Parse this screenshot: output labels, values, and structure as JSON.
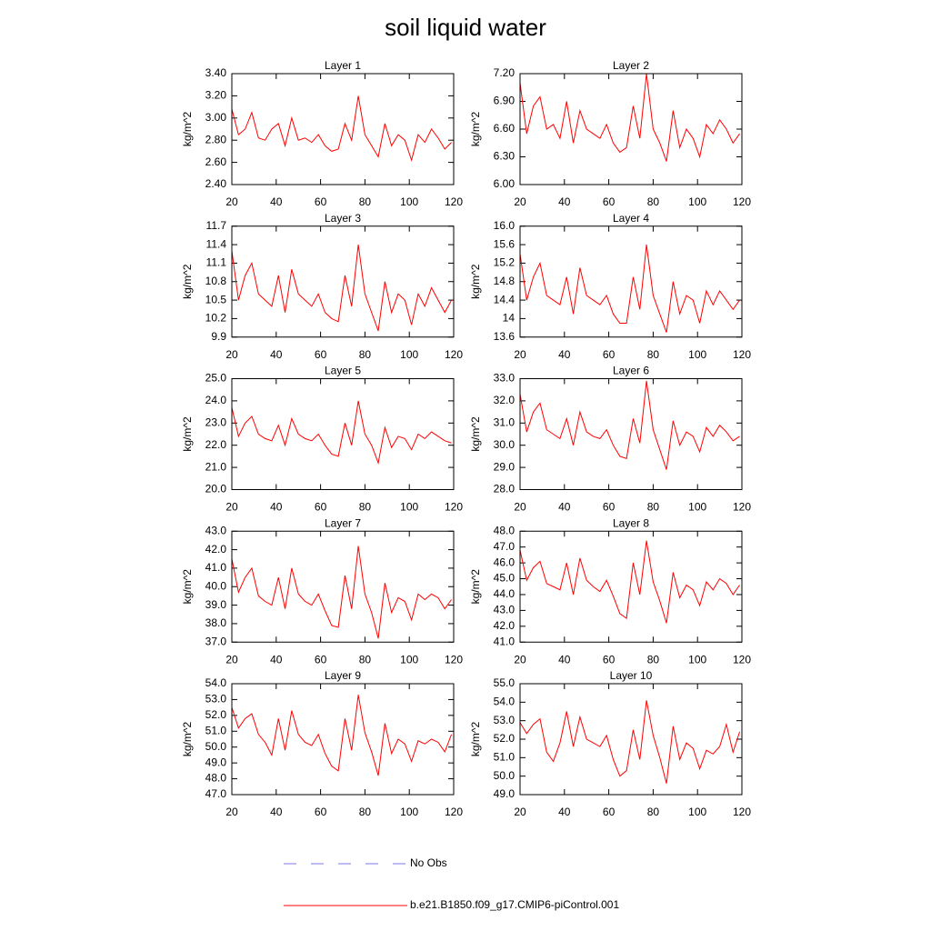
{
  "title": "soil liquid water",
  "legend": [
    {
      "name": "No Obs",
      "color": "#7b7be8",
      "dash": true
    },
    {
      "name": "b.e21.B1850.f09_g17.CMIP6-piControl.001",
      "color": "#ff0000",
      "dash": false
    }
  ],
  "chart_data": [
    {
      "type": "line",
      "title": "Layer 1",
      "y_label": "kg/m^2",
      "x": [
        20,
        23,
        26,
        29,
        32,
        35,
        38,
        41,
        44,
        47,
        50,
        53,
        56,
        59,
        62,
        65,
        68,
        71,
        74,
        77,
        80,
        83,
        86,
        89,
        92,
        95,
        98,
        101,
        104,
        107,
        110,
        113,
        116,
        119
      ],
      "xlim": [
        20,
        120
      ],
      "xticks": [
        20,
        40,
        60,
        80,
        100,
        120
      ],
      "ylim": [
        2.4,
        3.4
      ],
      "yticks": [
        {
          "value": 2.4,
          "label": "2.40"
        },
        {
          "value": 2.6,
          "label": "2.60"
        },
        {
          "value": 2.8,
          "label": "2.80"
        },
        {
          "value": 3.0,
          "label": "3.00"
        },
        {
          "value": 3.2,
          "label": "3.20"
        },
        {
          "value": 3.4,
          "label": "3.40"
        }
      ],
      "series": [
        {
          "color": "#ff0000",
          "values": [
            3.08,
            2.85,
            2.9,
            3.05,
            2.82,
            2.8,
            2.9,
            2.95,
            2.75,
            3.0,
            2.8,
            2.82,
            2.78,
            2.85,
            2.75,
            2.7,
            2.72,
            2.95,
            2.8,
            3.2,
            2.85,
            2.75,
            2.65,
            2.95,
            2.75,
            2.85,
            2.8,
            2.62,
            2.85,
            2.78,
            2.9,
            2.82,
            2.72,
            2.78
          ]
        }
      ]
    },
    {
      "type": "line",
      "title": "Layer 2",
      "y_label": "kg/m^2",
      "x": [
        20,
        23,
        26,
        29,
        32,
        35,
        38,
        41,
        44,
        47,
        50,
        53,
        56,
        59,
        62,
        65,
        68,
        71,
        74,
        77,
        80,
        83,
        86,
        89,
        92,
        95,
        98,
        101,
        104,
        107,
        110,
        113,
        116,
        119
      ],
      "xlim": [
        20,
        120
      ],
      "xticks": [
        20,
        40,
        60,
        80,
        100,
        120
      ],
      "ylim": [
        6.0,
        7.2
      ],
      "yticks": [
        {
          "value": 6.0,
          "label": "6.00"
        },
        {
          "value": 6.3,
          "label": "6.30"
        },
        {
          "value": 6.6,
          "label": "6.60"
        },
        {
          "value": 6.9,
          "label": "6.90"
        },
        {
          "value": 7.2,
          "label": "7.20"
        }
      ],
      "series": [
        {
          "color": "#ff0000",
          "values": [
            7.1,
            6.55,
            6.85,
            6.95,
            6.6,
            6.65,
            6.5,
            6.9,
            6.45,
            6.8,
            6.6,
            6.55,
            6.5,
            6.65,
            6.45,
            6.35,
            6.4,
            6.85,
            6.5,
            7.2,
            6.6,
            6.45,
            6.25,
            6.8,
            6.4,
            6.6,
            6.5,
            6.3,
            6.65,
            6.55,
            6.7,
            6.6,
            6.45,
            6.55
          ]
        }
      ]
    },
    {
      "type": "line",
      "title": "Layer 3",
      "y_label": "kg/m^2",
      "x": [
        20,
        23,
        26,
        29,
        32,
        35,
        38,
        41,
        44,
        47,
        50,
        53,
        56,
        59,
        62,
        65,
        68,
        71,
        74,
        77,
        80,
        83,
        86,
        89,
        92,
        95,
        98,
        101,
        104,
        107,
        110,
        113,
        116,
        119
      ],
      "xlim": [
        20,
        120
      ],
      "xticks": [
        20,
        40,
        60,
        80,
        100,
        120
      ],
      "ylim": [
        9.9,
        11.7
      ],
      "yticks": [
        9.9,
        10.2,
        10.5,
        10.8,
        11.1,
        11.4,
        11.7
      ],
      "series": [
        {
          "color": "#ff0000",
          "values": [
            11.3,
            10.5,
            10.9,
            11.1,
            10.6,
            10.5,
            10.4,
            10.9,
            10.3,
            11.0,
            10.6,
            10.5,
            10.4,
            10.6,
            10.3,
            10.2,
            10.15,
            10.9,
            10.4,
            11.4,
            10.6,
            10.3,
            10.0,
            10.8,
            10.3,
            10.6,
            10.5,
            10.1,
            10.6,
            10.4,
            10.7,
            10.5,
            10.3,
            10.5
          ]
        }
      ]
    },
    {
      "type": "line",
      "title": "Layer 4",
      "y_label": "kg/m^2",
      "x": [
        20,
        23,
        26,
        29,
        32,
        35,
        38,
        41,
        44,
        47,
        50,
        53,
        56,
        59,
        62,
        65,
        68,
        71,
        74,
        77,
        80,
        83,
        86,
        89,
        92,
        95,
        98,
        101,
        104,
        107,
        110,
        113,
        116,
        119
      ],
      "xlim": [
        20,
        120
      ],
      "xticks": [
        20,
        40,
        60,
        80,
        100,
        120
      ],
      "ylim": [
        13.6,
        16.0
      ],
      "yticks": [
        13.6,
        14.0,
        14.4,
        14.8,
        15.2,
        15.6,
        {
          "value": 16.0,
          "label": "16.0"
        }
      ],
      "series": [
        {
          "color": "#ff0000",
          "values": [
            15.4,
            14.4,
            14.9,
            15.2,
            14.5,
            14.4,
            14.3,
            14.9,
            14.1,
            15.1,
            14.5,
            14.4,
            14.3,
            14.5,
            14.1,
            13.9,
            13.9,
            14.9,
            14.2,
            15.6,
            14.5,
            14.1,
            13.7,
            14.8,
            14.1,
            14.5,
            14.4,
            13.9,
            14.6,
            14.3,
            14.6,
            14.4,
            14.2,
            14.4
          ]
        }
      ]
    },
    {
      "type": "line",
      "title": "Layer 5",
      "y_label": "kg/m^2",
      "x": [
        20,
        23,
        26,
        29,
        32,
        35,
        38,
        41,
        44,
        47,
        50,
        53,
        56,
        59,
        62,
        65,
        68,
        71,
        74,
        77,
        80,
        83,
        86,
        89,
        92,
        95,
        98,
        101,
        104,
        107,
        110,
        113,
        116,
        119
      ],
      "xlim": [
        20,
        120
      ],
      "xticks": [
        20,
        40,
        60,
        80,
        100,
        120
      ],
      "ylim": [
        20.0,
        25.0
      ],
      "yticks": [
        {
          "value": 20,
          "label": "20.0"
        },
        {
          "value": 21,
          "label": "21.0"
        },
        {
          "value": 22,
          "label": "22.0"
        },
        {
          "value": 23,
          "label": "23.0"
        },
        {
          "value": 24,
          "label": "24.0"
        },
        {
          "value": 25,
          "label": "25.0"
        }
      ],
      "series": [
        {
          "color": "#ff0000",
          "values": [
            23.7,
            22.4,
            23.0,
            23.3,
            22.5,
            22.3,
            22.2,
            22.9,
            22.0,
            23.2,
            22.5,
            22.3,
            22.2,
            22.5,
            22.0,
            21.6,
            21.5,
            23.0,
            22.0,
            24.0,
            22.5,
            22.0,
            21.2,
            22.8,
            21.9,
            22.4,
            22.3,
            21.8,
            22.5,
            22.3,
            22.6,
            22.4,
            22.2,
            22.1
          ]
        }
      ]
    },
    {
      "type": "line",
      "title": "Layer 6",
      "y_label": "kg/m^2",
      "x": [
        20,
        23,
        26,
        29,
        32,
        35,
        38,
        41,
        44,
        47,
        50,
        53,
        56,
        59,
        62,
        65,
        68,
        71,
        74,
        77,
        80,
        83,
        86,
        89,
        92,
        95,
        98,
        101,
        104,
        107,
        110,
        113,
        116,
        119
      ],
      "xlim": [
        20,
        120
      ],
      "xticks": [
        20,
        40,
        60,
        80,
        100,
        120
      ],
      "ylim": [
        28.0,
        33.0
      ],
      "yticks": [
        {
          "value": 28,
          "label": "28.0"
        },
        {
          "value": 29,
          "label": "29.0"
        },
        {
          "value": 30,
          "label": "30.0"
        },
        {
          "value": 31,
          "label": "31.0"
        },
        {
          "value": 32,
          "label": "32.0"
        },
        {
          "value": 33,
          "label": "33.0"
        }
      ],
      "series": [
        {
          "color": "#ff0000",
          "values": [
            32.3,
            30.6,
            31.5,
            31.9,
            30.7,
            30.5,
            30.3,
            31.2,
            30.0,
            31.5,
            30.6,
            30.4,
            30.3,
            30.7,
            30.0,
            29.5,
            29.4,
            31.2,
            30.1,
            32.9,
            30.7,
            29.8,
            28.9,
            31.1,
            30.0,
            30.6,
            30.4,
            29.7,
            30.8,
            30.4,
            30.9,
            30.6,
            30.2,
            30.4
          ]
        }
      ]
    },
    {
      "type": "line",
      "title": "Layer 7",
      "y_label": "kg/m^2",
      "x": [
        20,
        23,
        26,
        29,
        32,
        35,
        38,
        41,
        44,
        47,
        50,
        53,
        56,
        59,
        62,
        65,
        68,
        71,
        74,
        77,
        80,
        83,
        86,
        89,
        92,
        95,
        98,
        101,
        104,
        107,
        110,
        113,
        116,
        119
      ],
      "xlim": [
        20,
        120
      ],
      "xticks": [
        20,
        40,
        60,
        80,
        100,
        120
      ],
      "ylim": [
        37.0,
        43.0
      ],
      "yticks": [
        {
          "value": 37,
          "label": "37.0"
        },
        {
          "value": 38,
          "label": "38.0"
        },
        {
          "value": 39,
          "label": "39.0"
        },
        {
          "value": 40,
          "label": "40.0"
        },
        {
          "value": 41,
          "label": "41.0"
        },
        {
          "value": 42,
          "label": "42.0"
        },
        {
          "value": 43,
          "label": "43.0"
        }
      ],
      "series": [
        {
          "color": "#ff0000",
          "values": [
            41.5,
            39.7,
            40.5,
            41.0,
            39.5,
            39.2,
            39.0,
            40.5,
            38.8,
            41.0,
            39.6,
            39.2,
            39.0,
            39.6,
            38.7,
            37.9,
            37.8,
            40.6,
            38.8,
            42.2,
            39.6,
            38.6,
            37.2,
            40.2,
            38.6,
            39.4,
            39.2,
            38.2,
            39.6,
            39.3,
            39.6,
            39.4,
            38.8,
            39.3
          ]
        }
      ]
    },
    {
      "type": "line",
      "title": "Layer 8",
      "y_label": "kg/m^2",
      "x": [
        20,
        23,
        26,
        29,
        32,
        35,
        38,
        41,
        44,
        47,
        50,
        53,
        56,
        59,
        62,
        65,
        68,
        71,
        74,
        77,
        80,
        83,
        86,
        89,
        92,
        95,
        98,
        101,
        104,
        107,
        110,
        113,
        116,
        119
      ],
      "xlim": [
        20,
        120
      ],
      "xticks": [
        20,
        40,
        60,
        80,
        100,
        120
      ],
      "ylim": [
        41.0,
        48.0
      ],
      "yticks": [
        {
          "value": 41,
          "label": "41.0"
        },
        {
          "value": 42,
          "label": "42.0"
        },
        {
          "value": 43,
          "label": "43.0"
        },
        {
          "value": 44,
          "label": "44.0"
        },
        {
          "value": 45,
          "label": "45.0"
        },
        {
          "value": 46,
          "label": "46.0"
        },
        {
          "value": 47,
          "label": "47.0"
        },
        {
          "value": 48,
          "label": "48.0"
        }
      ],
      "series": [
        {
          "color": "#ff0000",
          "values": [
            46.8,
            44.9,
            45.7,
            46.1,
            44.7,
            44.5,
            44.3,
            46.0,
            44.0,
            46.3,
            44.9,
            44.5,
            44.2,
            44.9,
            43.9,
            42.8,
            42.5,
            46.0,
            44.0,
            47.4,
            44.8,
            43.6,
            42.2,
            45.4,
            43.8,
            44.6,
            44.3,
            43.3,
            44.8,
            44.3,
            45.0,
            44.7,
            44.0,
            44.6
          ]
        }
      ]
    },
    {
      "type": "line",
      "title": "Layer 9",
      "y_label": "kg/m^2",
      "x": [
        20,
        23,
        26,
        29,
        32,
        35,
        38,
        41,
        44,
        47,
        50,
        53,
        56,
        59,
        62,
        65,
        68,
        71,
        74,
        77,
        80,
        83,
        86,
        89,
        92,
        95,
        98,
        101,
        104,
        107,
        110,
        113,
        116,
        119
      ],
      "xlim": [
        20,
        120
      ],
      "xticks": [
        20,
        40,
        60,
        80,
        100,
        120
      ],
      "ylim": [
        47.0,
        54.0
      ],
      "yticks": [
        {
          "value": 47,
          "label": "47.0"
        },
        {
          "value": 48,
          "label": "48.0"
        },
        {
          "value": 49,
          "label": "49.0"
        },
        {
          "value": 50,
          "label": "50.0"
        },
        {
          "value": 51,
          "label": "51.0"
        },
        {
          "value": 52,
          "label": "52.0"
        },
        {
          "value": 53,
          "label": "53.0"
        },
        {
          "value": 54,
          "label": "54.0"
        }
      ],
      "series": [
        {
          "color": "#ff0000",
          "values": [
            52.5,
            51.2,
            51.8,
            52.1,
            50.8,
            50.3,
            49.5,
            51.8,
            49.8,
            52.3,
            50.8,
            50.3,
            50.1,
            50.8,
            49.6,
            48.8,
            48.5,
            51.8,
            49.8,
            53.3,
            50.9,
            49.7,
            48.2,
            51.5,
            49.6,
            50.5,
            50.2,
            49.1,
            50.4,
            50.2,
            50.5,
            50.3,
            49.7,
            50.8
          ]
        }
      ]
    },
    {
      "type": "line",
      "title": "Layer 10",
      "y_label": "kg/m^2",
      "x": [
        20,
        23,
        26,
        29,
        32,
        35,
        38,
        41,
        44,
        47,
        50,
        53,
        56,
        59,
        62,
        65,
        68,
        71,
        74,
        77,
        80,
        83,
        86,
        89,
        92,
        95,
        98,
        101,
        104,
        107,
        110,
        113,
        116,
        119
      ],
      "xlim": [
        20,
        120
      ],
      "xticks": [
        20,
        40,
        60,
        80,
        100,
        120
      ],
      "ylim": [
        49.0,
        55.0
      ],
      "yticks": [
        {
          "value": 49,
          "label": "49.0"
        },
        {
          "value": 50,
          "label": "50.0"
        },
        {
          "value": 51,
          "label": "51.0"
        },
        {
          "value": 52,
          "label": "52.0"
        },
        {
          "value": 53,
          "label": "53.0"
        },
        {
          "value": 54,
          "label": "54.0"
        },
        {
          "value": 55,
          "label": "55.0"
        }
      ],
      "series": [
        {
          "color": "#ff0000",
          "values": [
            52.9,
            52.3,
            52.8,
            53.1,
            51.3,
            50.8,
            51.8,
            53.5,
            51.6,
            53.2,
            52.0,
            51.8,
            51.6,
            52.2,
            50.9,
            50.0,
            50.3,
            52.5,
            50.9,
            54.1,
            52.2,
            51.0,
            49.6,
            52.7,
            50.9,
            51.8,
            51.5,
            50.4,
            51.4,
            51.2,
            51.6,
            52.8,
            51.3,
            52.4
          ]
        }
      ]
    }
  ]
}
